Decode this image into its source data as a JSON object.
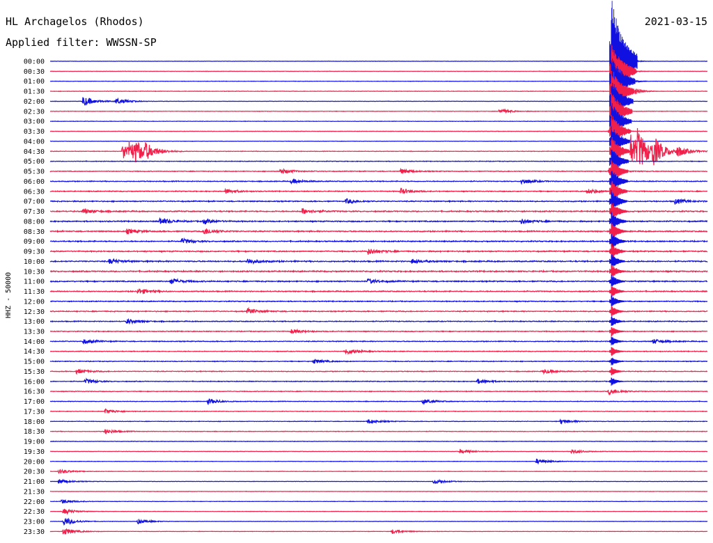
{
  "header": {
    "station": "HL Archagelos (Rhodos)",
    "filter": "Applied filter: WWSSN-SP",
    "date": "2021-03-15"
  },
  "chart_data": {
    "type": "line",
    "title": "HL Archagelos (Rhodos)",
    "subtitle": "Applied filter: WWSSN-SP",
    "date": "2021-03-15",
    "ylabel": "HHZ - 50000",
    "xlabel": "",
    "grid": false,
    "legend": "none",
    "trace_colors": [
      "#1010e0",
      "#f0204a"
    ],
    "rows": [
      "00:00",
      "00:30",
      "01:00",
      "01:30",
      "02:00",
      "02:30",
      "03:00",
      "03:30",
      "04:00",
      "04:30",
      "05:00",
      "05:30",
      "06:00",
      "06:30",
      "07:00",
      "07:30",
      "08:00",
      "08:30",
      "09:00",
      "09:30",
      "10:00",
      "10:30",
      "11:00",
      "11:30",
      "12:00",
      "12:30",
      "13:00",
      "13:30",
      "14:00",
      "14:30",
      "15:00",
      "15:30",
      "16:00",
      "16:30",
      "17:00",
      "17:30",
      "18:00",
      "18:30",
      "19:00",
      "19:30",
      "20:00",
      "20:30",
      "21:00",
      "21:30",
      "22:00",
      "22:30",
      "23:00",
      "23:30"
    ],
    "row_window_minutes": 30,
    "noise_level": [
      0.06,
      0.06,
      0.07,
      0.08,
      0.07,
      0.08,
      0.07,
      0.08,
      0.07,
      0.09,
      0.12,
      0.14,
      0.16,
      0.18,
      0.2,
      0.22,
      0.22,
      0.22,
      0.22,
      0.22,
      0.24,
      0.24,
      0.22,
      0.2,
      0.18,
      0.18,
      0.17,
      0.16,
      0.16,
      0.15,
      0.14,
      0.14,
      0.14,
      0.13,
      0.12,
      0.11,
      0.1,
      0.1,
      0.09,
      0.08,
      0.08,
      0.07,
      0.07,
      0.07,
      0.07,
      0.07,
      0.07,
      0.07
    ],
    "events": [
      {
        "row": 4,
        "minute": 1.5,
        "amplitude": 2.2
      },
      {
        "row": 4,
        "minute": 3,
        "amplitude": 1.2
      },
      {
        "row": 5,
        "minute": 20.5,
        "amplitude": 1.0
      },
      {
        "row": 7,
        "minute": 25.5,
        "amplitude": 1.0
      },
      {
        "row": 9,
        "minute": 3.3,
        "amplitude": 3.5
      },
      {
        "row": 9,
        "minute": 3.6,
        "amplitude": 2.6
      },
      {
        "row": 9,
        "minute": 3.9,
        "amplitude": 2.8
      },
      {
        "row": 9,
        "minute": 4.3,
        "amplitude": 2.2
      },
      {
        "row": 9,
        "minute": 26.5,
        "amplitude": 7.0
      },
      {
        "row": 9,
        "minute": 26.8,
        "amplitude": 6.0
      },
      {
        "row": 9,
        "minute": 27.5,
        "amplitude": 5.0
      },
      {
        "row": 9,
        "minute": 28.6,
        "amplitude": 2.0
      },
      {
        "row": 11,
        "minute": 10.5,
        "amplitude": 1.2
      },
      {
        "row": 11,
        "minute": 16,
        "amplitude": 1.0
      },
      {
        "row": 11,
        "minute": 25.5,
        "amplitude": 1.5
      },
      {
        "row": 12,
        "minute": 11,
        "amplitude": 1.0
      },
      {
        "row": 12,
        "minute": 21.5,
        "amplitude": 1.2
      },
      {
        "row": 13,
        "minute": 8,
        "amplitude": 1.0
      },
      {
        "row": 13,
        "minute": 16,
        "amplitude": 1.2
      },
      {
        "row": 13,
        "minute": 24.5,
        "amplitude": 1.0
      },
      {
        "row": 14,
        "minute": 13.5,
        "amplitude": 1.0
      },
      {
        "row": 14,
        "minute": 28.5,
        "amplitude": 1.2
      },
      {
        "row": 15,
        "minute": 1.5,
        "amplitude": 1.0
      },
      {
        "row": 15,
        "minute": 11.5,
        "amplitude": 1.2
      },
      {
        "row": 16,
        "minute": 5,
        "amplitude": 1.5
      },
      {
        "row": 16,
        "minute": 7,
        "amplitude": 1.0
      },
      {
        "row": 16,
        "minute": 21.5,
        "amplitude": 1.0
      },
      {
        "row": 17,
        "minute": 3.5,
        "amplitude": 1.0
      },
      {
        "row": 17,
        "minute": 7,
        "amplitude": 1.5
      },
      {
        "row": 18,
        "minute": 6,
        "amplitude": 1.0
      },
      {
        "row": 19,
        "minute": 14.5,
        "amplitude": 1.2
      },
      {
        "row": 20,
        "minute": 2.7,
        "amplitude": 1.0
      },
      {
        "row": 20,
        "minute": 9,
        "amplitude": 1.2
      },
      {
        "row": 20,
        "minute": 16.5,
        "amplitude": 1.0
      },
      {
        "row": 22,
        "minute": 5.5,
        "amplitude": 1.2
      },
      {
        "row": 22,
        "minute": 14.5,
        "amplitude": 1.0
      },
      {
        "row": 23,
        "minute": 4,
        "amplitude": 1.3
      },
      {
        "row": 25,
        "minute": 9,
        "amplitude": 1.2
      },
      {
        "row": 26,
        "minute": 3.5,
        "amplitude": 1.0
      },
      {
        "row": 27,
        "minute": 11,
        "amplitude": 1.0
      },
      {
        "row": 28,
        "minute": 1.5,
        "amplitude": 1.0
      },
      {
        "row": 28,
        "minute": 27.5,
        "amplitude": 1.0
      },
      {
        "row": 29,
        "minute": 13.5,
        "amplitude": 1.3
      },
      {
        "row": 30,
        "minute": 12,
        "amplitude": 1.0
      },
      {
        "row": 31,
        "minute": 1.2,
        "amplitude": 1.0
      },
      {
        "row": 31,
        "minute": 22.5,
        "amplitude": 1.0
      },
      {
        "row": 32,
        "minute": 1.6,
        "amplitude": 1.0
      },
      {
        "row": 32,
        "minute": 19.5,
        "amplitude": 1.0
      },
      {
        "row": 33,
        "minute": 25.5,
        "amplitude": 1.4
      },
      {
        "row": 34,
        "minute": 7.2,
        "amplitude": 1.2
      },
      {
        "row": 34,
        "minute": 17,
        "amplitude": 1.0
      },
      {
        "row": 35,
        "minute": 2.5,
        "amplitude": 1.0
      },
      {
        "row": 36,
        "minute": 14.5,
        "amplitude": 1.0
      },
      {
        "row": 36,
        "minute": 23.3,
        "amplitude": 1.0
      },
      {
        "row": 37,
        "minute": 2.5,
        "amplitude": 1.0
      },
      {
        "row": 39,
        "minute": 18.7,
        "amplitude": 1.0
      },
      {
        "row": 39,
        "minute": 23.8,
        "amplitude": 1.0
      },
      {
        "row": 40,
        "minute": 22.2,
        "amplitude": 1.0
      },
      {
        "row": 41,
        "minute": 0.4,
        "amplitude": 1.0
      },
      {
        "row": 42,
        "minute": 0.4,
        "amplitude": 1.0
      },
      {
        "row": 42,
        "minute": 17.5,
        "amplitude": 1.0
      },
      {
        "row": 44,
        "minute": 0.5,
        "amplitude": 1.0
      },
      {
        "row": 45,
        "minute": 0.6,
        "amplitude": 1.2
      },
      {
        "row": 46,
        "minute": 0.6,
        "amplitude": 1.8
      },
      {
        "row": 46,
        "minute": 4,
        "amplitude": 1.0
      },
      {
        "row": 47,
        "minute": 0.6,
        "amplitude": 1.5
      },
      {
        "row": 47,
        "minute": 15.6,
        "amplitude": 1.0
      }
    ],
    "big_event": {
      "start_row": 0,
      "minute": 25.6,
      "amplitude": 7.0,
      "duration_rows": 33,
      "initial_amplitude": 6.0
    }
  }
}
